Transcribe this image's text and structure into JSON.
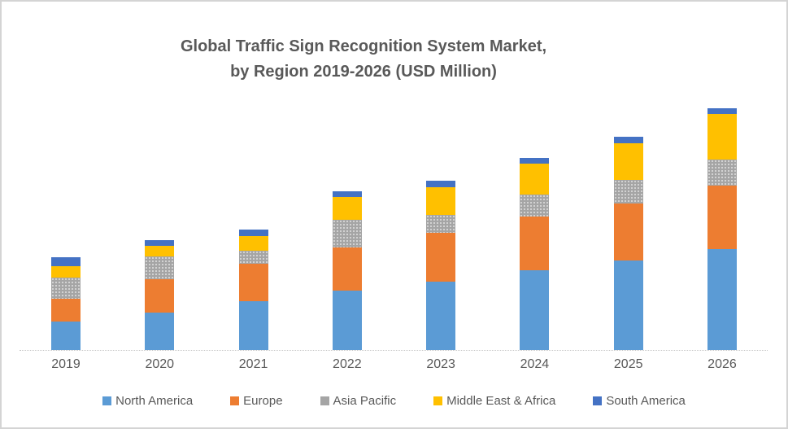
{
  "frame": {
    "border_color": "#d4d4d4",
    "background": "#ffffff"
  },
  "title": {
    "line1": "Global Traffic Sign Recognition System Market,",
    "line2": "by Region 2019-2026 (USD Million)",
    "color": "#595959"
  },
  "chart_data": {
    "type": "bar",
    "stacked": true,
    "title": "Global Traffic Sign Recognition System Market, by Region 2019-2026 (USD Million)",
    "xlabel": "",
    "ylabel": "",
    "grid": false,
    "y_axis_shown": false,
    "value_note": "No y-axis or data labels in source image; values are relative stacked heights measured in pixels",
    "legend_position": "bottom",
    "categories": [
      "2019",
      "2020",
      "2021",
      "2022",
      "2023",
      "2024",
      "2025",
      "2026"
    ],
    "series": [
      {
        "name": "North America",
        "color": "#5B9BD5",
        "pattern": "solid",
        "values": [
          35,
          46.5,
          60.5,
          73.5,
          84,
          98.5,
          110.5,
          124
        ]
      },
      {
        "name": "Europe",
        "color": "#ED7D31",
        "pattern": "solid",
        "values": [
          28,
          40.5,
          45.5,
          52.5,
          60.5,
          66,
          70,
          78.5
        ]
      },
      {
        "name": "Asia Pacific",
        "color": "#A5A5A5",
        "pattern": "dotted",
        "values": [
          26,
          28.5,
          16,
          34.5,
          21.5,
          26.5,
          29,
          31.5
        ]
      },
      {
        "name": "Middle East & Africa",
        "color": "#FFC000",
        "pattern": "solid",
        "values": [
          14,
          12.5,
          18.5,
          27.5,
          34,
          38,
          44.5,
          56
        ]
      },
      {
        "name": "South America",
        "color": "#4472C4",
        "pattern": "solid",
        "values": [
          11.5,
          7.5,
          7.5,
          7.5,
          8.5,
          7.5,
          8.5,
          7
        ]
      }
    ]
  },
  "x_axis": {
    "labels": [
      "2019",
      "2020",
      "2021",
      "2022",
      "2023",
      "2024",
      "2025",
      "2026"
    ],
    "label_color": "#595959",
    "line_color": "#c9c9c9"
  },
  "legend": {
    "items": [
      {
        "label": "North America",
        "color": "#5B9BD5"
      },
      {
        "label": "Europe",
        "color": "#ED7D31"
      },
      {
        "label": "Asia Pacific",
        "color": "#A5A5A5"
      },
      {
        "label": "Middle East & Africa",
        "color": "#FFC000"
      },
      {
        "label": "South America",
        "color": "#4472C4"
      }
    ]
  }
}
